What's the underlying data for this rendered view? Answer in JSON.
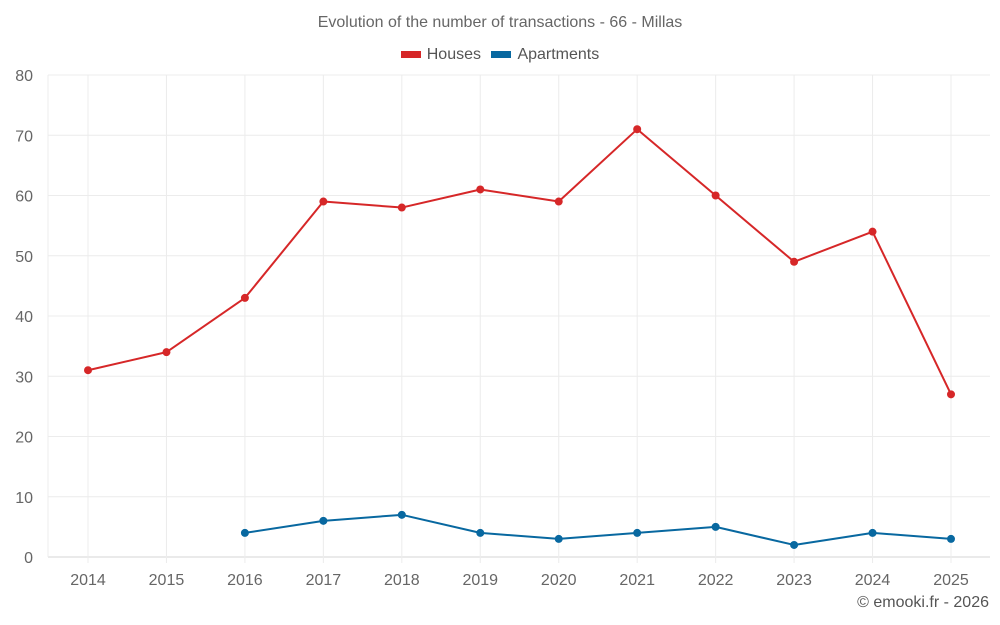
{
  "chart_data": {
    "type": "line",
    "title": "Evolution of the number of transactions - 66 - Millas",
    "xlabel": "",
    "ylabel": "",
    "x": [
      "2014",
      "2015",
      "2016",
      "2017",
      "2018",
      "2019",
      "2020",
      "2021",
      "2022",
      "2023",
      "2024",
      "2025"
    ],
    "ylim": [
      0,
      80
    ],
    "yticks": [
      0,
      10,
      20,
      30,
      40,
      50,
      60,
      70,
      80
    ],
    "grid": true,
    "legend_position": "top-center",
    "series": [
      {
        "name": "Houses",
        "color": "#d62728",
        "values": [
          31,
          34,
          43,
          59,
          58,
          61,
          59,
          71,
          60,
          49,
          54,
          27
        ]
      },
      {
        "name": "Apartments",
        "color": "#0868a0",
        "values": [
          null,
          null,
          4,
          6,
          7,
          4,
          3,
          4,
          5,
          2,
          4,
          3
        ]
      }
    ]
  },
  "credit": "© emooki.fr - 2026"
}
